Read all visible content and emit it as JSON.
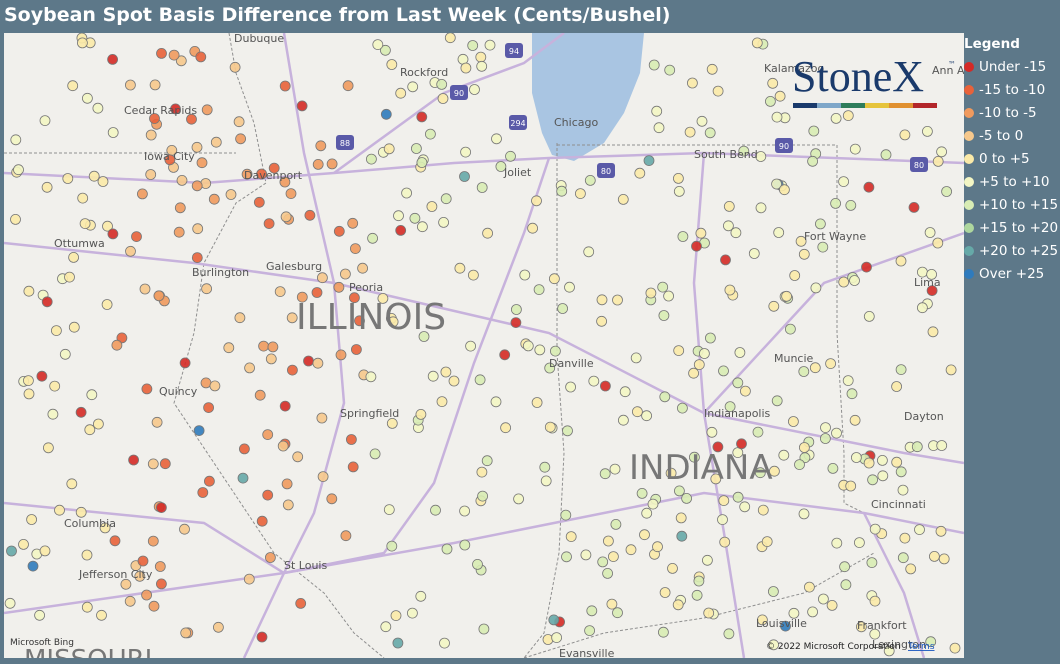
{
  "header": {
    "title": "Soybean Spot Basis Difference from Last Week (Cents/Bushel)"
  },
  "logo": {
    "text": "StoneX",
    "mark": "™"
  },
  "legend": {
    "title": "Legend",
    "items": [
      {
        "label": "Under -15",
        "color": "#d42a26"
      },
      {
        "label": "-15 to -10",
        "color": "#e8623a"
      },
      {
        "label": "-10 to -5",
        "color": "#f09a5e"
      },
      {
        "label": "-5 to 0",
        "color": "#f6c88c"
      },
      {
        "label": "0 to +5",
        "color": "#fbeaa8"
      },
      {
        "label": "+5 to +10",
        "color": "#f3f6c4"
      },
      {
        "label": "+10 to +15",
        "color": "#d8ecb4"
      },
      {
        "label": "+15 to +20",
        "color": "#aed79e"
      },
      {
        "label": "+20 to +25",
        "color": "#66a9a8"
      },
      {
        "label": "Over +25",
        "color": "#2f7bbd"
      }
    ]
  },
  "map": {
    "places": [
      "Dubuque",
      "Rockford",
      "Kalamazoo",
      "Ann Arbor",
      "Cedar Rapids",
      "Iowa City",
      "Chicago",
      "South Bend",
      "Davenport",
      "Joliet",
      "Ottumwa",
      "Burlington",
      "Galesburg",
      "Peoria",
      "Fort Wayne",
      "Lima",
      "Muncie",
      "Danville",
      "Quincy",
      "Springfield",
      "Indianapolis",
      "Dayton",
      "Cincinnati",
      "Columbia",
      "Jefferson City",
      "St Louis",
      "Louisville",
      "Frankfort",
      "Evansville",
      "Lexington"
    ],
    "states": [
      "ILLINOIS",
      "INDIANA",
      "MISSOURI"
    ],
    "shields": [
      "94",
      "90",
      "294",
      "88",
      "80",
      "90",
      "80"
    ]
  },
  "footer": {
    "brand": "Microsoft Bing",
    "copyright": "© 2022 Microsoft Corporation",
    "terms": "Terms"
  }
}
